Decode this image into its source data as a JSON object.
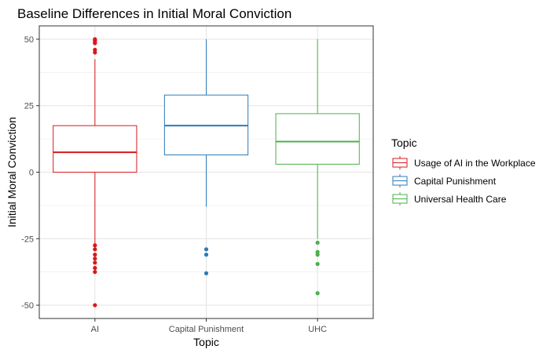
{
  "chart_data": {
    "type": "boxplot",
    "title": "Baseline Differences in Initial Moral Conviction",
    "xlabel": "Topic",
    "ylabel": "Initial Moral Conviction",
    "categories": [
      "AI",
      "Capital Punishment",
      "UHC"
    ],
    "y_ticks": [
      50,
      25,
      0,
      -25,
      -50
    ],
    "ylim": [
      -55,
      55
    ],
    "grid": true,
    "legend": {
      "title": "Topic",
      "placement": "right",
      "entries": [
        "Usage of AI in the Workplace",
        "Capital Punishment",
        "Universal Health Care"
      ]
    },
    "series": [
      {
        "category": "AI",
        "color": "#d7191c",
        "whisker_low": -27,
        "q1": 0,
        "median": 7.5,
        "q3": 17.5,
        "whisker_high": 42.5,
        "outliers": [
          -27.5,
          -29,
          -31,
          -32.5,
          -34,
          -36,
          -37.5,
          -50,
          45,
          46,
          48.5,
          49,
          49.5,
          50
        ]
      },
      {
        "category": "Capital Punishment",
        "color": "#2c7bb6",
        "whisker_low": -13,
        "q1": 6.5,
        "median": 17.5,
        "q3": 29,
        "whisker_high": 50,
        "outliers": [
          -29,
          -31,
          -38
        ]
      },
      {
        "category": "UHC",
        "color": "#4daf4a",
        "whisker_low": -25,
        "q1": 3,
        "median": 11.5,
        "q3": 22,
        "whisker_high": 50,
        "outliers": [
          -26.5,
          -30,
          -31,
          -34.5,
          -45.5
        ]
      }
    ]
  }
}
